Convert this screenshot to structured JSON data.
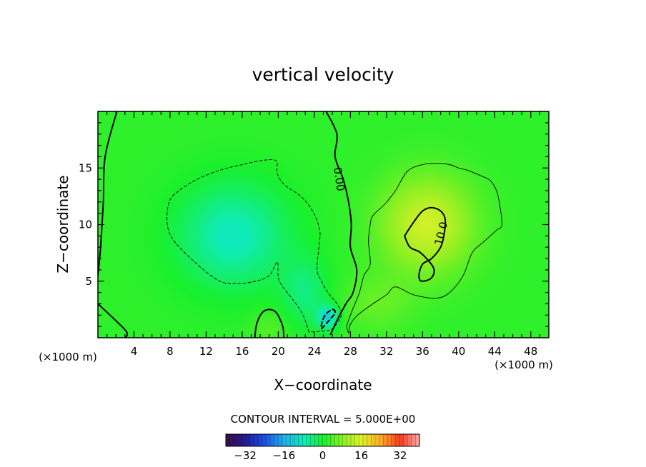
{
  "chart_data": {
    "type": "heatmap",
    "title": "vertical velocity",
    "xlabel": "X−coordinate",
    "ylabel": "Z−coordinate",
    "x_unit_left": "(×1000 m)",
    "x_unit_right": "(×1000 m)",
    "xlim": [
      0,
      50
    ],
    "ylim": [
      0,
      20
    ],
    "x_ticks": [
      4,
      8,
      12,
      16,
      20,
      24,
      28,
      32,
      36,
      40,
      44,
      48
    ],
    "y_ticks": [
      5,
      10,
      15
    ],
    "contour_interval_label": "CONTOUR INTERVAL = 5.000E+00",
    "contour_interval": 5,
    "colorbar": {
      "range": [
        -40,
        40
      ],
      "ticks": [
        -32,
        -16,
        0,
        16,
        32
      ],
      "tick_labels": [
        "−32",
        "−16",
        "0",
        "16",
        "32"
      ]
    },
    "contour_labels": [
      {
        "text": "0.00",
        "x": 26.7,
        "y": 14.0,
        "rotation": 82
      },
      {
        "text": "10.0",
        "x": 38.1,
        "y": 9.2,
        "rotation": -76
      }
    ],
    "field_features": [
      {
        "kind": "updraft",
        "x": 36.5,
        "y": 10.0,
        "peak": 13
      },
      {
        "kind": "downdraft",
        "x": 15.0,
        "y": 9.0,
        "peak": -10
      },
      {
        "kind": "downdraft",
        "x": 25.5,
        "y": 1.8,
        "peak": -12
      }
    ],
    "contours": [
      {
        "level": 0,
        "style": "solid",
        "points": [
          [
            2.1,
            20.0
          ],
          [
            0.8,
            16.0
          ],
          [
            0.6,
            12.0
          ],
          [
            0.3,
            8.0
          ],
          [
            0.0,
            5.5
          ]
        ]
      },
      {
        "level": 0,
        "style": "solid",
        "points": [
          [
            0.0,
            3.0
          ],
          [
            2.0,
            1.5
          ],
          [
            3.2,
            0.5
          ],
          [
            3.1,
            0.0
          ]
        ]
      },
      {
        "level": 0,
        "style": "solid",
        "points": [
          [
            25.3,
            20.0
          ],
          [
            26.5,
            18.0
          ],
          [
            26.3,
            16.0
          ],
          [
            27.2,
            14.0
          ],
          [
            27.8,
            12.0
          ],
          [
            28.1,
            10.0
          ],
          [
            28.0,
            8.0
          ],
          [
            28.7,
            6.0
          ],
          [
            28.3,
            4.0
          ],
          [
            27.5,
            3.0
          ],
          [
            26.5,
            1.5
          ],
          [
            25.8,
            0.3
          ]
        ]
      },
      {
        "level": 0,
        "style": "solid",
        "points": [
          [
            17.4,
            0.0
          ],
          [
            17.6,
            1.2
          ],
          [
            18.2,
            2.2
          ],
          [
            19.0,
            2.5
          ],
          [
            19.8,
            2.2
          ],
          [
            20.5,
            1.0
          ],
          [
            20.6,
            0.0
          ]
        ]
      },
      {
        "level": -5,
        "style": "dashed",
        "points": [
          [
            23.4,
            0.5
          ],
          [
            23.0,
            1.5
          ],
          [
            22.4,
            2.5
          ],
          [
            21.2,
            3.8
          ],
          [
            20.5,
            4.5
          ],
          [
            20.0,
            5.3
          ],
          [
            19.9,
            6.7
          ],
          [
            19.0,
            5.5
          ],
          [
            17.5,
            5.0
          ],
          [
            15.5,
            4.8
          ],
          [
            13.5,
            5.0
          ],
          [
            11.0,
            6.5
          ],
          [
            8.5,
            8.5
          ],
          [
            7.7,
            10.0
          ],
          [
            7.9,
            12.0
          ],
          [
            9.0,
            13.0
          ],
          [
            11.0,
            14.0
          ],
          [
            13.5,
            14.8
          ],
          [
            16.0,
            15.3
          ],
          [
            18.5,
            15.7
          ],
          [
            19.8,
            15.6
          ],
          [
            19.9,
            14.5
          ],
          [
            20.7,
            13.5
          ],
          [
            22.5,
            12.5
          ],
          [
            23.8,
            11.2
          ],
          [
            24.6,
            9.5
          ],
          [
            24.5,
            8.0
          ],
          [
            24.3,
            6.0
          ],
          [
            24.8,
            5.0
          ],
          [
            25.5,
            4.0
          ],
          [
            26.5,
            3.0
          ],
          [
            27.0,
            2.0
          ],
          [
            26.0,
            0.8
          ],
          [
            25.0,
            0.6
          ],
          [
            23.4,
            0.5
          ]
        ]
      },
      {
        "level": -10,
        "style": "dashed",
        "points": [
          [
            24.8,
            0.8
          ],
          [
            25.6,
            1.5
          ],
          [
            26.3,
            2.2
          ],
          [
            26.0,
            2.5
          ],
          [
            25.2,
            2.0
          ],
          [
            24.8,
            1.2
          ],
          [
            24.8,
            0.8
          ]
        ]
      },
      {
        "level": 5,
        "style": "solid",
        "points": [
          [
            27.8,
            0.4
          ],
          [
            28.0,
            1.2
          ],
          [
            28.8,
            2.0
          ],
          [
            30.5,
            3.0
          ],
          [
            32.0,
            3.8
          ],
          [
            33.0,
            4.5
          ],
          [
            35.0,
            3.8
          ],
          [
            37.5,
            3.5
          ],
          [
            39.0,
            4.0
          ],
          [
            40.5,
            5.5
          ],
          [
            41.5,
            7.5
          ],
          [
            42.8,
            8.5
          ],
          [
            44.2,
            9.5
          ],
          [
            44.8,
            10.0
          ],
          [
            44.5,
            12.0
          ],
          [
            44.2,
            13.0
          ],
          [
            43.5,
            13.9
          ],
          [
            42.5,
            14.3
          ],
          [
            41.0,
            14.8
          ],
          [
            40.0,
            15.0
          ],
          [
            39.0,
            15.3
          ],
          [
            37.5,
            15.4
          ],
          [
            36.0,
            15.3
          ],
          [
            34.3,
            14.7
          ],
          [
            33.0,
            13.0
          ],
          [
            31.8,
            11.8
          ],
          [
            30.5,
            10.8
          ],
          [
            30.2,
            10.0
          ],
          [
            30.0,
            8.5
          ],
          [
            30.2,
            6.5
          ],
          [
            29.5,
            5.5
          ],
          [
            29.0,
            4.0
          ],
          [
            28.5,
            3.0
          ],
          [
            28.0,
            2.0
          ],
          [
            27.6,
            1.0
          ],
          [
            27.8,
            0.4
          ]
        ]
      },
      {
        "level": 10,
        "style": "solid",
        "points": [
          [
            34.0,
            9.0
          ],
          [
            35.0,
            10.2
          ],
          [
            36.0,
            11.2
          ],
          [
            37.0,
            11.5
          ],
          [
            38.0,
            11.2
          ],
          [
            38.5,
            10.5
          ],
          [
            38.4,
            9.2
          ],
          [
            38.0,
            8.0
          ],
          [
            37.0,
            7.0
          ],
          [
            36.0,
            6.5
          ],
          [
            35.6,
            5.5
          ],
          [
            35.9,
            5.0
          ],
          [
            37.0,
            5.3
          ],
          [
            37.2,
            6.2
          ],
          [
            35.8,
            7.5
          ],
          [
            34.6,
            8.0
          ],
          [
            34.0,
            9.0
          ]
        ]
      }
    ]
  }
}
